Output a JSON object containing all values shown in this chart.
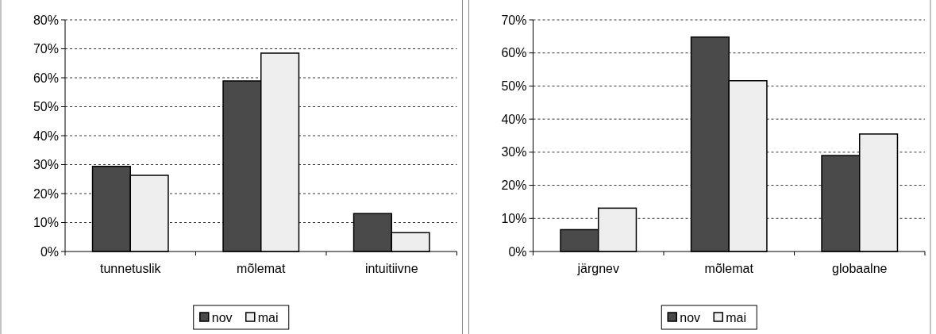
{
  "chart_data": [
    {
      "type": "bar",
      "categories": [
        "tunnetuslik",
        "mõlemat",
        "intuitiivne"
      ],
      "series": [
        {
          "name": "nov",
          "color": "#4a4a4a",
          "values": [
            29.4,
            58.9,
            13.1
          ]
        },
        {
          "name": "mai",
          "color": "#eeeeee",
          "values": [
            26.3,
            68.5,
            6.5
          ]
        }
      ],
      "ylim": [
        0,
        80
      ],
      "yticks": [
        {
          "value": 0,
          "label": "0%"
        },
        {
          "value": 10,
          "label": "10%"
        },
        {
          "value": 20,
          "label": "20%"
        },
        {
          "value": 30,
          "label": "30%"
        },
        {
          "value": 40,
          "label": "40%"
        },
        {
          "value": 50,
          "label": "50%"
        },
        {
          "value": 60,
          "label": "60%"
        },
        {
          "value": 70,
          "label": "70%"
        },
        {
          "value": 80,
          "label": "80%"
        }
      ],
      "grid": "y",
      "legend": "bottom"
    },
    {
      "type": "bar",
      "categories": [
        "järgnev",
        "mõlemat",
        "globaalne"
      ],
      "series": [
        {
          "name": "nov",
          "color": "#4a4a4a",
          "values": [
            6.6,
            64.8,
            29.0
          ]
        },
        {
          "name": "mai",
          "color": "#eeeeee",
          "values": [
            13.1,
            51.6,
            35.5
          ]
        }
      ],
      "ylim": [
        0,
        70
      ],
      "yticks": [
        {
          "value": 0,
          "label": "0%"
        },
        {
          "value": 10,
          "label": "10%"
        },
        {
          "value": 20,
          "label": "20%"
        },
        {
          "value": 30,
          "label": "30%"
        },
        {
          "value": 40,
          "label": "40%"
        },
        {
          "value": 50,
          "label": "50%"
        },
        {
          "value": 60,
          "label": "60%"
        },
        {
          "value": 70,
          "label": "70%"
        }
      ],
      "grid": "y",
      "legend": "bottom"
    }
  ]
}
